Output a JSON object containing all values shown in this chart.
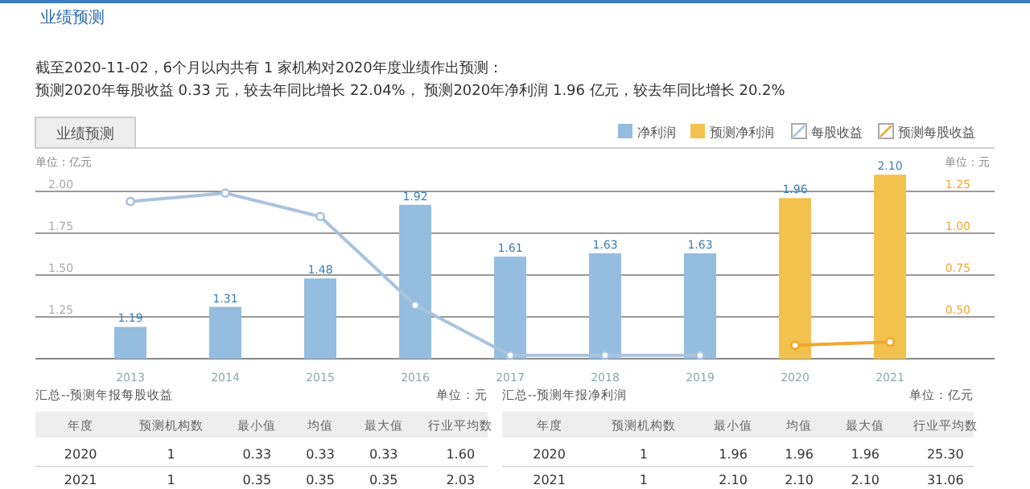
{
  "chart_data": {
    "type": "bar",
    "title": "业绩预测",
    "subtitle": "截至2020-11-02，6个月以内共有 1 家机构对2020年度业绩作出预测：",
    "annotations": [
      "预测2020年每股收益 0.33 元，较去年同比增长 22.04%， 预测2020年净利润 1.96 亿元，较去年同比增长 20.2%",
      "业绩预测",
      "汇总--预测年报每股收益",
      "单位：元",
      "年度",
      "预测机构数",
      "最小值",
      "均值",
      "最大值",
      "行业平均数",
      "2020",
      "1",
      "0.33",
      "0.33",
      "0.33",
      "1.60",
      "2021",
      "1",
      "0.35",
      "0.35",
      "0.35",
      "2.03",
      "汇总--预测年报净利润",
      "单位：亿元",
      "年度",
      "预测机构数",
      "最小值",
      "均值",
      "最大值",
      "行业平均数",
      "2020",
      "1",
      "1.96",
      "1.96",
      "1.96",
      "25.30",
      "2021",
      "1",
      "2.10",
      "2.10",
      "2.10",
      "31.06"
    ],
    "ylabel": "单位：亿元",
    "y2label": "单位：元",
    "categories": [
      "2013",
      "2014",
      "2015",
      "2016",
      "2017",
      "2018",
      "2019",
      "2020",
      "2021"
    ],
    "series": [
      {
        "name": "净利润",
        "color": "#94bddf",
        "values": [
          1.19,
          1.31,
          1.48,
          1.92,
          1.61,
          1.63,
          1.63,
          null,
          null
        ],
        "value_labels": [
          "1.19",
          "1.31",
          "1.48",
          "1.92",
          "1.61",
          "1.63",
          "1.63",
          null,
          null
        ]
      },
      {
        "name": "预测净利润",
        "color": "#f2c14e",
        "values": [
          null,
          null,
          null,
          null,
          null,
          null,
          null,
          1.96,
          2.1
        ],
        "value_labels": [
          null,
          null,
          null,
          null,
          null,
          null,
          null,
          "1.96",
          "2.10"
        ]
      },
      {
        "name": "每股收益",
        "type": "line",
        "axis": "y2",
        "color": "#a9c3de",
        "values": [
          1.19,
          1.24,
          1.1,
          0.57,
          0.27,
          0.27,
          0.27,
          null,
          null
        ]
      },
      {
        "name": "预测每股收益",
        "type": "line",
        "axis": "y2",
        "color": "#f0a830",
        "values": [
          null,
          null,
          null,
          null,
          null,
          null,
          null,
          0.33,
          0.35
        ]
      }
    ],
    "ylim": [
      1.0,
      2.125
    ],
    "yticks": [
      {
        "value": 1.25,
        "label": "1.25"
      },
      {
        "value": 1.5,
        "label": "1.50"
      },
      {
        "value": 1.75,
        "label": "1.75"
      },
      {
        "value": 2.0,
        "label": "2.00"
      }
    ],
    "y2lim": [
      0.25,
      1.375
    ],
    "y2ticks": [
      {
        "value": 0.5,
        "label": "0.50"
      },
      {
        "value": 0.75,
        "label": "0.75"
      },
      {
        "value": 1.0,
        "label": "1.00"
      },
      {
        "value": 1.25,
        "label": "1.25"
      }
    ],
    "grid": "y",
    "legend": "top right",
    "marker": "circle"
  }
}
